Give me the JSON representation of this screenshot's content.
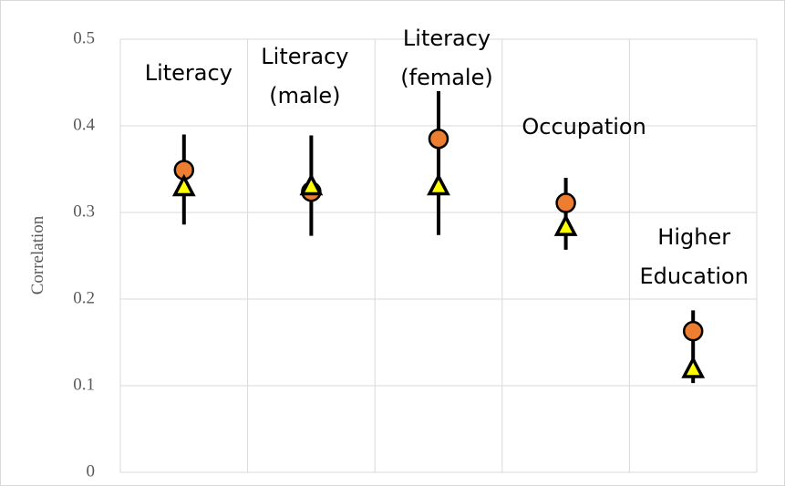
{
  "chart_data": {
    "type": "dot-errorbar",
    "y_label": "Correlation",
    "categories": [
      [
        "Literacy"
      ],
      [
        "Literacy",
        "(male)"
      ],
      [
        "Literacy",
        "(female)"
      ],
      [
        "Occupation"
      ],
      [
        "Higher",
        "Education"
      ]
    ],
    "series": [
      {
        "color": "#ed7d31",
        "marker": "circle",
        "values": [
          0.349,
          0.324,
          0.385,
          0.311,
          0.163
        ]
      },
      {
        "color": "#ffff00",
        "marker": "triangle",
        "values": [
          0.329,
          0.33,
          0.33,
          0.283,
          0.119
        ]
      }
    ],
    "ranges": [
      {
        "low": 0.286,
        "high": 0.39
      },
      {
        "low": 0.273,
        "high": 0.389
      },
      {
        "low": 0.274,
        "high": 0.44
      },
      {
        "low": 0.257,
        "high": 0.34
      },
      {
        "low": 0.103,
        "high": 0.187
      }
    ],
    "ylim": [
      0,
      0.5
    ],
    "yticks": [
      0,
      0.1,
      0.2,
      0.3,
      0.4,
      0.5
    ],
    "grid": true
  }
}
